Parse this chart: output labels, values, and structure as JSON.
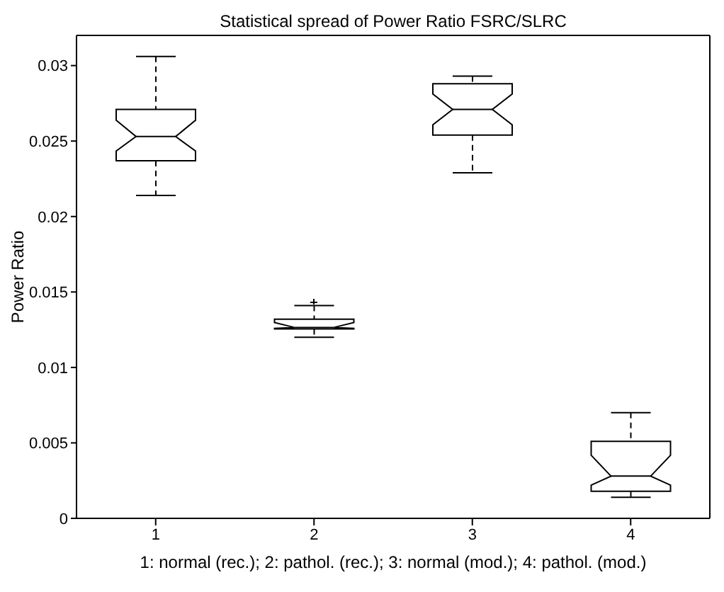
{
  "chart_data": {
    "type": "box",
    "title": "Statistical spread of Power Ratio FSRC/SLRC",
    "xlabel": "1: normal (rec.); 2: pathol. (rec.); 3: normal (mod.); 4: pathol. (mod.)",
    "ylabel": "Power Ratio",
    "categories": [
      "1",
      "2",
      "3",
      "4"
    ],
    "boxes": [
      {
        "low": 0.0214,
        "q1": 0.0237,
        "median": 0.0253,
        "q3": 0.0271,
        "high": 0.0306
      },
      {
        "low": 0.012,
        "q1": 0.01255,
        "median": 0.01265,
        "q3": 0.0132,
        "high": 0.0141,
        "outliers": [
          0.0143
        ]
      },
      {
        "low": 0.0229,
        "q1": 0.0254,
        "median": 0.0271,
        "q3": 0.0288,
        "high": 0.0293
      },
      {
        "low": 0.0014,
        "q1": 0.0018,
        "median": 0.0028,
        "q3": 0.0051,
        "high": 0.007
      }
    ],
    "color": "#000000",
    "ylim": [
      0,
      0.032
    ],
    "yticks": [
      0,
      0.005,
      0.01,
      0.015,
      0.02,
      0.025,
      0.03
    ]
  }
}
